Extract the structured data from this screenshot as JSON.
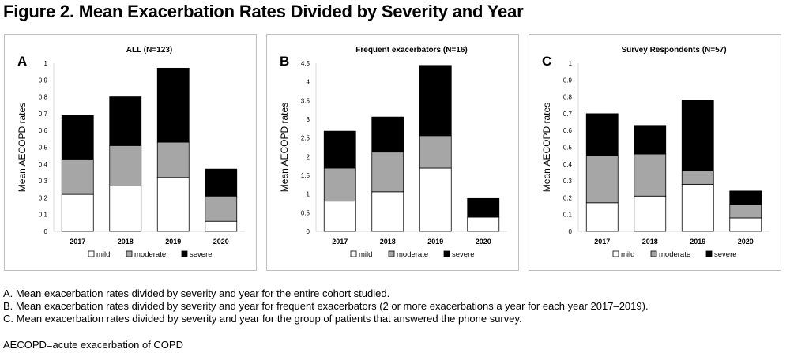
{
  "figure": {
    "title": "Figure 2. Mean Exacerbation Rates Divided by Severity and Year"
  },
  "legend_labels": [
    "mild",
    "moderate",
    "severe"
  ],
  "colors": {
    "mild": "#ffffff",
    "moderate": "#a6a6a6",
    "severe": "#000000",
    "axis": "#d9d9d9",
    "border": "#bfbfbf"
  },
  "chart_data": [
    {
      "type": "bar",
      "stacked": true,
      "panel_letter": "A",
      "title": "ALL (N=123)",
      "ylabel": "Mean AECOPD rates",
      "ylim": [
        0,
        1
      ],
      "yticks": [
        "0",
        "0.1",
        "0.2",
        "0.3",
        "0.4",
        "0.5",
        "0.6",
        "0.7",
        "0.8",
        "0.9",
        "1"
      ],
      "categories": [
        "2017",
        "2018",
        "2019",
        "2020"
      ],
      "series": [
        {
          "name": "mild",
          "values": [
            0.22,
            0.27,
            0.32,
            0.06
          ]
        },
        {
          "name": "moderate",
          "values": [
            0.21,
            0.24,
            0.21,
            0.15
          ]
        },
        {
          "name": "severe",
          "values": [
            0.26,
            0.29,
            0.44,
            0.16
          ]
        }
      ],
      "legend": "bottom"
    },
    {
      "type": "bar",
      "stacked": true,
      "panel_letter": "B",
      "title": "Frequent exacerbators (N=16)",
      "ylabel": "Mean AECOPD rates",
      "ylim": [
        0,
        4.5
      ],
      "yticks": [
        "0",
        "0.5",
        "1",
        "1.5",
        "2",
        "2.5",
        "3",
        "3.5",
        "4",
        "4.5"
      ],
      "categories": [
        "2017",
        "2018",
        "2019",
        "2020"
      ],
      "series": [
        {
          "name": "mild",
          "values": [
            0.81,
            1.06,
            1.69,
            0.38
          ]
        },
        {
          "name": "moderate",
          "values": [
            0.88,
            1.06,
            0.87,
            0.0
          ]
        },
        {
          "name": "severe",
          "values": [
            0.99,
            0.94,
            1.88,
            0.5
          ]
        }
      ],
      "legend": "bottom"
    },
    {
      "type": "bar",
      "stacked": true,
      "panel_letter": "C",
      "title": "Survey Respondents (N=57)",
      "ylabel": "Mean AECOPD rates",
      "ylim": [
        0,
        1
      ],
      "yticks": [
        "0",
        "0.1",
        "0.2",
        "0.3",
        "0.4",
        "0.5",
        "0.6",
        "0.7",
        "0.8",
        "0.9",
        "1"
      ],
      "categories": [
        "2017",
        "2018",
        "2019",
        "2020"
      ],
      "series": [
        {
          "name": "mild",
          "values": [
            0.17,
            0.21,
            0.28,
            0.08
          ]
        },
        {
          "name": "moderate",
          "values": [
            0.28,
            0.25,
            0.08,
            0.08
          ]
        },
        {
          "name": "severe",
          "values": [
            0.25,
            0.17,
            0.42,
            0.08
          ]
        }
      ],
      "legend": "bottom"
    }
  ],
  "captions": [
    "A. Mean exacerbation rates divided by severity and year for the entire cohort studied.",
    "B. Mean exacerbation rates divided by severity and year for frequent exacerbators (2 or more exacerbations a year for each year 2017–2019).",
    "C. Mean exacerbation rates divided by severity and year for the group of patients that answered the phone survey."
  ],
  "footnote": "AECOPD=acute exacerbation of COPD"
}
